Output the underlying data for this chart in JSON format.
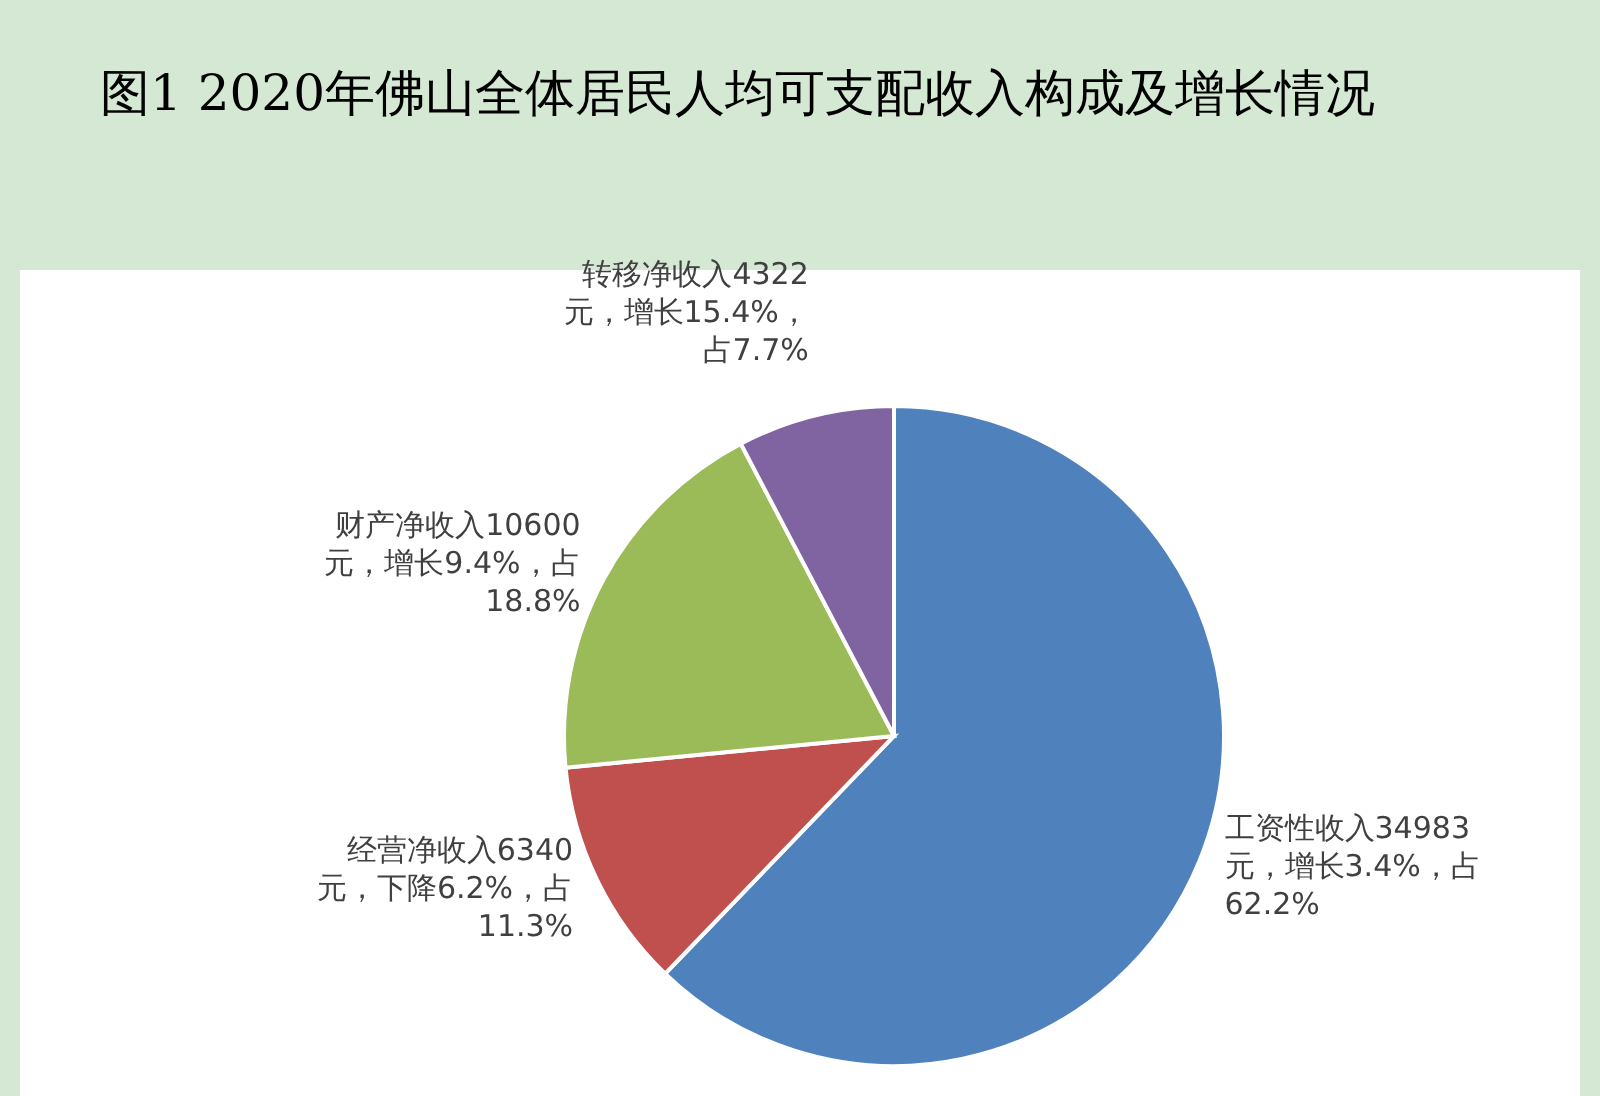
{
  "chart_data": {
    "type": "pie",
    "title": "图1 2020年佛山全体居民人均可支配收入构成及增长情况",
    "categories": [
      "工资性收入",
      "经营净收入",
      "财产净收入",
      "转移净收入"
    ],
    "values": [
      34983,
      6340,
      10600,
      4322
    ],
    "colors": [
      "#4f81bd",
      "#c0504d",
      "#9bbb59",
      "#8064a2"
    ],
    "value_labels": [
      "34983元，增长3.4%，占62.2%",
      "6340元，下降6.2%，占11.3%",
      "10600元，增长9.4%，占18.8%",
      "4322元，增长15.4%，占7.7%"
    ]
  }
}
